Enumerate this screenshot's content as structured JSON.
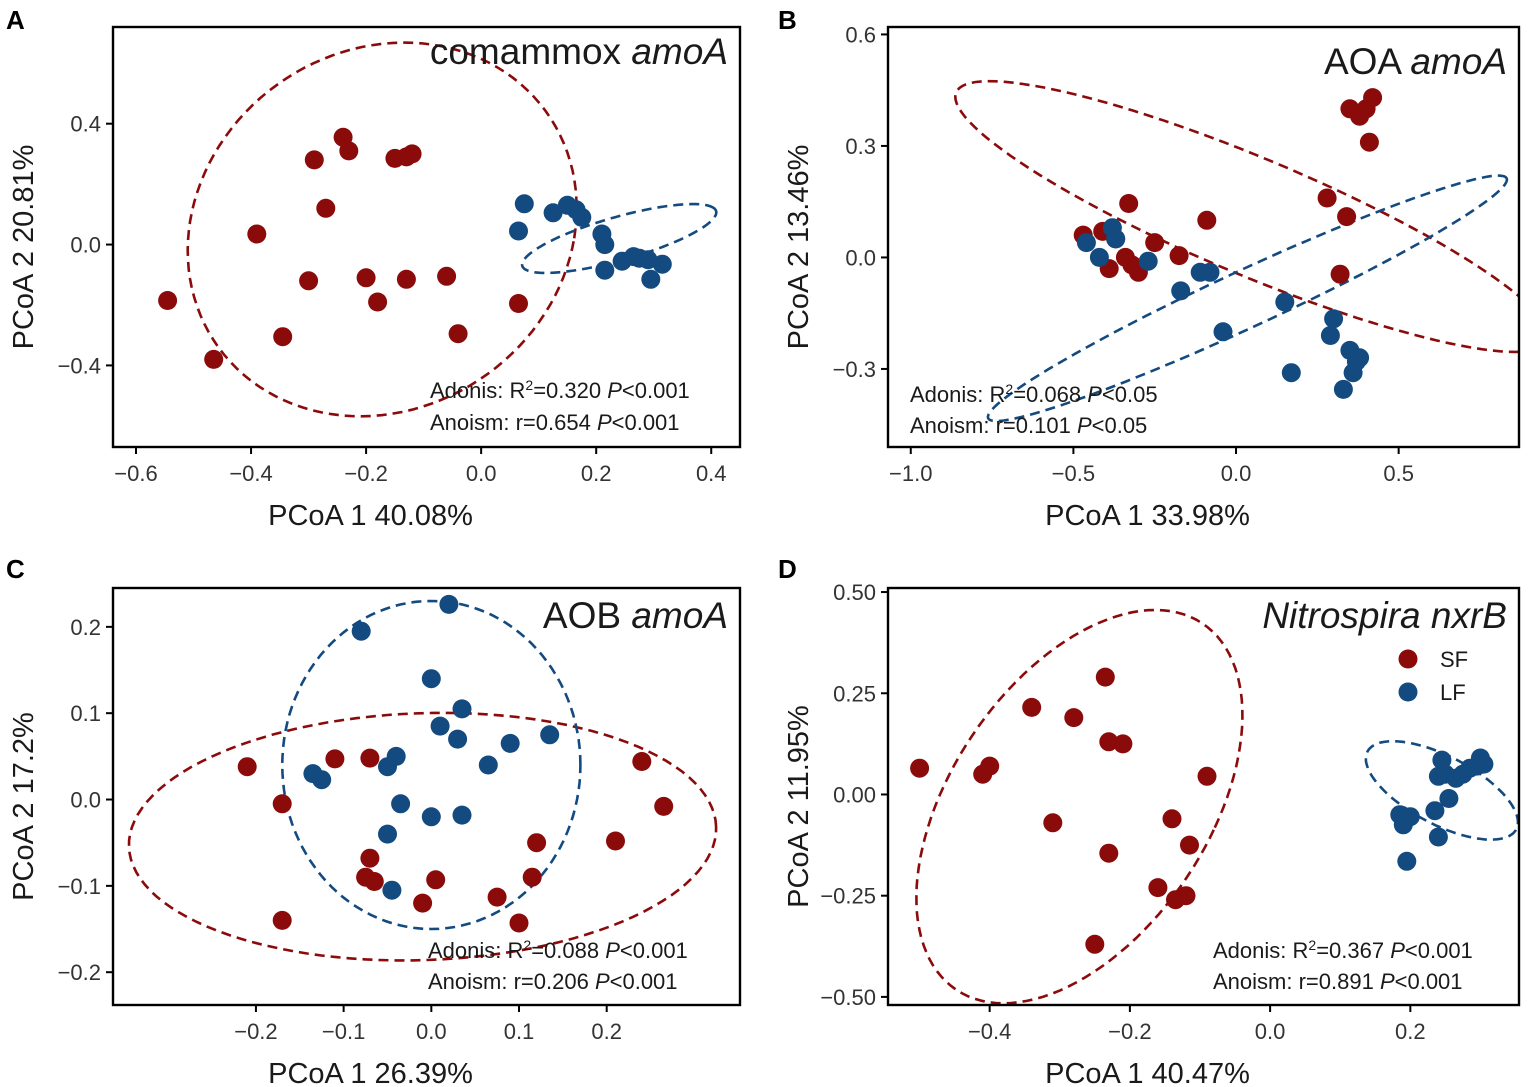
{
  "colors": {
    "SF": "#8b0b0b",
    "LF": "#134a80",
    "frame": "#000000"
  },
  "legend": {
    "entries": [
      {
        "group": "SF",
        "label": "SF"
      },
      {
        "group": "LF",
        "label": "LF"
      }
    ]
  },
  "chart_data": [
    {
      "panel": "A",
      "type": "scatter",
      "title_regular": "comammox ",
      "title_italic": "amoA",
      "xlabel": "PCoA 1 40.08%",
      "ylabel": "PCoA 2 20.81%",
      "xlim": [
        -0.64,
        0.45
      ],
      "ylim": [
        -0.67,
        0.72
      ],
      "xticks": [
        -0.6,
        -0.4,
        -0.2,
        0.0,
        0.2,
        0.4
      ],
      "xtick_labels": [
        "−0.6",
        "−0.4",
        "−0.2",
        "0.0",
        "0.2",
        "0.4"
      ],
      "yticks": [
        -0.4,
        0.0,
        0.4
      ],
      "ytick_labels": [
        "−0.4",
        "0.0",
        "0.4"
      ],
      "stats": [
        {
          "prefix": "Adonis: R",
          "sup": "2",
          "mid": "=0.320 ",
          "p": "P",
          "suffix": "<0.001"
        },
        {
          "prefix": "Anoism: r=0.654 ",
          "sup": "",
          "mid": "",
          "p": "P",
          "suffix": "<0.001"
        }
      ],
      "ellipses": [
        {
          "group": "SF",
          "cx": -0.172,
          "cy": 0.05,
          "rx": 0.335,
          "ry": 0.62,
          "angle": -5
        },
        {
          "group": "LF",
          "cx": 0.24,
          "cy": 0.02,
          "rx": 0.193,
          "ry": 0.065,
          "angle": 31
        }
      ],
      "series": [
        {
          "name": "SF",
          "x": [
            -0.545,
            -0.465,
            -0.39,
            -0.345,
            -0.3,
            -0.29,
            -0.27,
            -0.24,
            -0.23,
            -0.2,
            -0.18,
            -0.15,
            -0.13,
            -0.13,
            -0.12,
            -0.06,
            -0.04,
            0.065
          ],
          "y": [
            -0.185,
            -0.38,
            0.035,
            -0.305,
            -0.12,
            0.28,
            0.12,
            0.355,
            0.31,
            -0.11,
            -0.19,
            0.285,
            -0.115,
            0.29,
            0.3,
            -0.105,
            -0.295,
            -0.195
          ]
        },
        {
          "name": "LF",
          "x": [
            0.065,
            0.075,
            0.125,
            0.15,
            0.165,
            0.175,
            0.21,
            0.215,
            0.215,
            0.245,
            0.265,
            0.275,
            0.29,
            0.295,
            0.315
          ],
          "y": [
            0.045,
            0.135,
            0.105,
            0.13,
            0.115,
            0.09,
            0.035,
            0.0,
            -0.085,
            -0.055,
            -0.04,
            -0.045,
            -0.05,
            -0.115,
            -0.065
          ]
        }
      ]
    },
    {
      "panel": "B",
      "type": "scatter",
      "title_regular": "AOA ",
      "title_italic": "amoA",
      "xlabel": "PCoA 1 33.98%",
      "ylabel": "PCoA 2 13.46%",
      "xlim": [
        -1.07,
        0.87
      ],
      "ylim": [
        -0.51,
        0.62
      ],
      "xticks": [
        -1.0,
        -0.5,
        0.0,
        0.5
      ],
      "xtick_labels": [
        "−1.0",
        "−0.5",
        "0.0",
        "0.5"
      ],
      "yticks": [
        -0.3,
        0.0,
        0.3,
        0.6
      ],
      "ytick_labels": [
        "−0.3",
        "0.0",
        "0.3",
        "0.6"
      ],
      "stats": [
        {
          "prefix": "Adonis: R",
          "sup": "2",
          "mid": "=0.068 ",
          "p": "P",
          "suffix": "<0.05"
        },
        {
          "prefix": "Anoism: r=0.101 ",
          "sup": "",
          "mid": "",
          "p": "P",
          "suffix": "<0.05"
        }
      ],
      "ellipses": [
        {
          "group": "SF",
          "cx": 0.05,
          "cy": 0.11,
          "rx": 0.97,
          "ry": 0.16,
          "angle": -20
        },
        {
          "group": "LF",
          "cx": 0.035,
          "cy": -0.11,
          "rx": 0.86,
          "ry": 0.078,
          "angle": 22
        }
      ],
      "series": [
        {
          "name": "SF",
          "x": [
            -0.47,
            -0.41,
            -0.39,
            -0.37,
            -0.34,
            -0.33,
            -0.32,
            -0.3,
            -0.25,
            -0.175,
            -0.09,
            0.28,
            0.32,
            0.34,
            0.35,
            0.38,
            0.4,
            0.41,
            0.42
          ],
          "y": [
            0.06,
            0.07,
            -0.03,
            0.05,
            0.0,
            0.145,
            -0.02,
            -0.04,
            0.04,
            0.005,
            0.1,
            0.16,
            -0.045,
            0.11,
            0.4,
            0.38,
            0.4,
            0.31,
            0.43
          ]
        },
        {
          "name": "LF",
          "x": [
            -0.46,
            -0.42,
            -0.38,
            -0.37,
            -0.27,
            -0.17,
            -0.11,
            -0.08,
            -0.04,
            0.15,
            0.17,
            0.29,
            0.3,
            0.33,
            0.35,
            0.36,
            0.37,
            0.38
          ],
          "y": [
            0.04,
            0.0,
            0.08,
            0.05,
            -0.01,
            -0.09,
            -0.04,
            -0.04,
            -0.2,
            -0.12,
            -0.31,
            -0.21,
            -0.165,
            -0.355,
            -0.25,
            -0.31,
            -0.28,
            -0.27
          ]
        }
      ]
    },
    {
      "panel": "C",
      "type": "scatter",
      "title_regular": "AOB ",
      "title_italic": "amoA",
      "xlabel": "PCoA 1 26.39%",
      "ylabel": "PCoA 2 17.2%",
      "xlim": [
        -0.363,
        0.352
      ],
      "ylim": [
        -0.238,
        0.245
      ],
      "xticks": [
        -0.2,
        -0.1,
        0.0,
        0.1,
        0.2
      ],
      "xtick_labels": [
        "−0.2",
        "−0.1",
        "0.0",
        "0.1",
        "0.2"
      ],
      "yticks": [
        -0.2,
        -0.1,
        0.0,
        0.1,
        0.2
      ],
      "ytick_labels": [
        "−0.2",
        "−0.1",
        "0.0",
        "0.1",
        "0.2"
      ],
      "stats": [
        {
          "prefix": "Adonis: R",
          "sup": "2",
          "mid": "=0.088 ",
          "p": "P",
          "suffix": "<0.001"
        },
        {
          "prefix": "Anoism: r=0.206 ",
          "sup": "",
          "mid": "",
          "p": "P",
          "suffix": "<0.001"
        }
      ],
      "ellipses": [
        {
          "group": "SF",
          "cx": -0.01,
          "cy": -0.043,
          "rx": 0.335,
          "ry": 0.143,
          "angle": 2
        },
        {
          "group": "LF",
          "cx": 0.0,
          "cy": 0.04,
          "rx": 0.17,
          "ry": 0.19,
          "angle": 0
        }
      ],
      "series": [
        {
          "name": "SF",
          "x": [
            -0.21,
            -0.17,
            -0.17,
            -0.11,
            -0.075,
            -0.07,
            -0.07,
            -0.065,
            -0.01,
            0.005,
            0.075,
            0.1,
            0.115,
            0.12,
            0.21,
            0.24,
            0.265
          ],
          "y": [
            0.038,
            -0.005,
            -0.14,
            0.047,
            -0.09,
            -0.068,
            0.048,
            -0.095,
            -0.12,
            -0.093,
            -0.113,
            -0.143,
            -0.09,
            -0.05,
            -0.048,
            0.044,
            -0.008
          ]
        },
        {
          "name": "LF",
          "x": [
            -0.135,
            -0.125,
            -0.08,
            -0.05,
            -0.05,
            -0.045,
            -0.04,
            -0.035,
            0.0,
            0.0,
            0.01,
            0.02,
            0.03,
            0.035,
            0.035,
            0.065,
            0.09,
            0.135
          ],
          "y": [
            0.03,
            0.023,
            0.195,
            -0.04,
            0.038,
            -0.105,
            0.05,
            -0.005,
            -0.02,
            0.14,
            0.085,
            0.226,
            0.07,
            0.105,
            -0.018,
            0.04,
            0.065,
            0.075
          ]
        }
      ]
    },
    {
      "panel": "D",
      "type": "scatter",
      "title_regular": "",
      "title_italic": "Nitrospira nxrB",
      "xlabel": "PCoA 1 40.47%",
      "ylabel": "PCoA 2 11.95%",
      "xlim": [
        -0.545,
        0.355
      ],
      "ylim": [
        -0.52,
        0.51
      ],
      "xticks": [
        -0.4,
        -0.2,
        0.0,
        0.2
      ],
      "xtick_labels": [
        "−0.4",
        "−0.2",
        "0.0",
        "0.2"
      ],
      "yticks": [
        -0.5,
        -0.25,
        0.0,
        0.25,
        0.5
      ],
      "ytick_labels": [
        "−0.50",
        "−0.25",
        "0.00",
        "0.25",
        "0.50"
      ],
      "stats": [
        {
          "prefix": "Adonis: R",
          "sup": "2",
          "mid": "=0.367 ",
          "p": "P",
          "suffix": "<0.001"
        },
        {
          "prefix": "Anoism: r=0.891 ",
          "sup": "",
          "mid": "",
          "p": "P",
          "suffix": "<0.001"
        }
      ],
      "ellipses": [
        {
          "group": "SF",
          "cx": -0.272,
          "cy": -0.03,
          "rx": 0.2,
          "ry": 0.5,
          "angle": -15
        },
        {
          "group": "LF",
          "cx": 0.245,
          "cy": 0.01,
          "rx": 0.068,
          "ry": 0.148,
          "angle": 40
        }
      ],
      "series": [
        {
          "name": "SF",
          "x": [
            -0.5,
            -0.41,
            -0.4,
            -0.34,
            -0.31,
            -0.28,
            -0.25,
            -0.235,
            -0.23,
            -0.23,
            -0.21,
            -0.16,
            -0.14,
            -0.135,
            -0.12,
            -0.115,
            -0.09
          ],
          "y": [
            0.065,
            0.05,
            0.07,
            0.215,
            -0.07,
            0.19,
            -0.37,
            0.29,
            0.13,
            -0.145,
            0.125,
            -0.23,
            -0.06,
            -0.26,
            -0.25,
            -0.125,
            0.045
          ]
        },
        {
          "name": "LF",
          "x": [
            0.185,
            0.19,
            0.195,
            0.2,
            0.235,
            0.24,
            0.24,
            0.245,
            0.25,
            0.255,
            0.265,
            0.275,
            0.285,
            0.295,
            0.3,
            0.305
          ],
          "y": [
            -0.05,
            -0.075,
            -0.165,
            -0.055,
            -0.04,
            -0.105,
            0.045,
            0.085,
            0.05,
            -0.01,
            0.04,
            0.05,
            0.065,
            0.07,
            0.09,
            0.075
          ]
        }
      ]
    }
  ]
}
